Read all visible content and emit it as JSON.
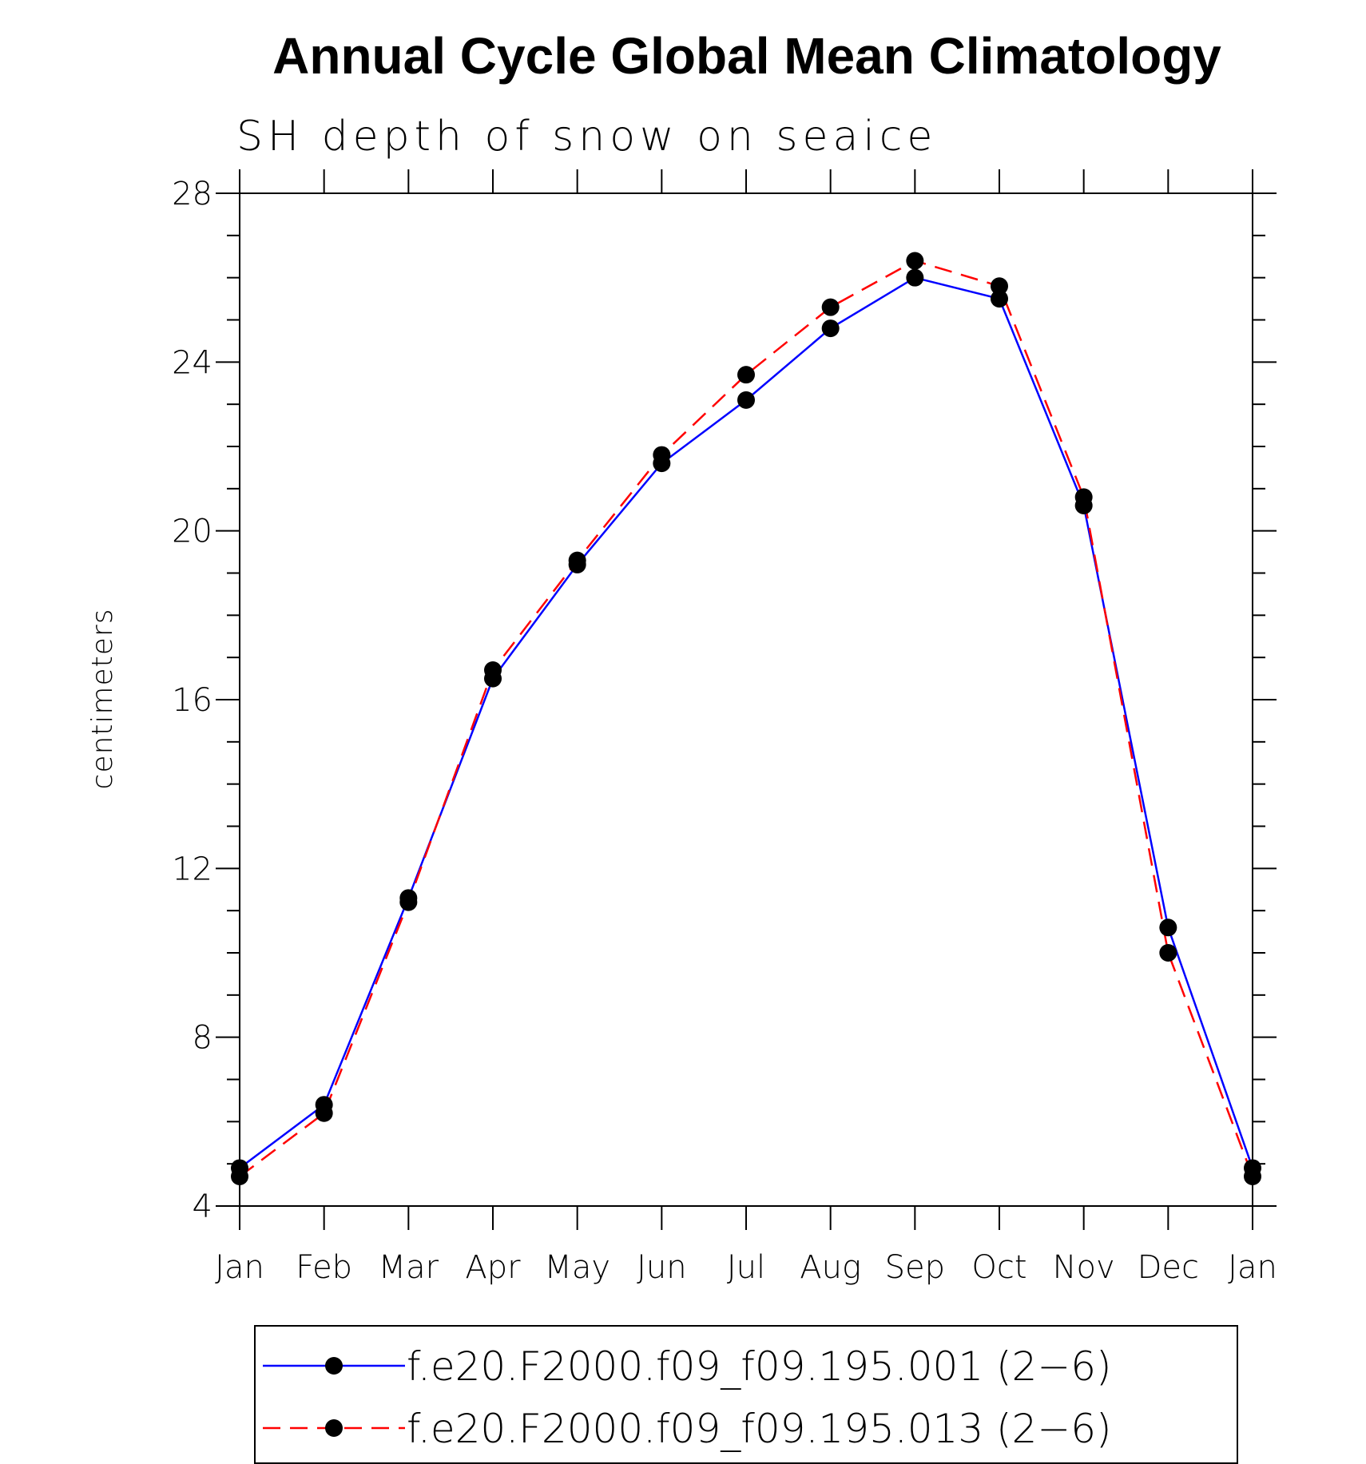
{
  "chart_data": {
    "type": "line",
    "title": "Annual Cycle Global Mean Climatology",
    "subtitle": "SH depth of snow on seaice",
    "xlabel": "",
    "ylabel": "centimeters",
    "categories": [
      "Jan",
      "Feb",
      "Mar",
      "Apr",
      "May",
      "Jun",
      "Jul",
      "Aug",
      "Sep",
      "Oct",
      "Nov",
      "Dec",
      "Jan"
    ],
    "ylim": [
      4,
      28
    ],
    "yticks": [
      "4",
      "8",
      "12",
      "16",
      "20",
      "24",
      "28"
    ],
    "legend_position": "bottom",
    "series": [
      {
        "name": "f.e20.F2000.f09_f09.195.001 (2−6)",
        "color": "#0000ff",
        "dash": "solid",
        "marker": "filled-circle",
        "values": [
          4.9,
          6.4,
          11.3,
          16.5,
          19.2,
          21.6,
          23.1,
          24.8,
          26.0,
          25.5,
          20.6,
          10.6,
          4.9
        ]
      },
      {
        "name": "f.e20.F2000.f09_f09.195.013 (2−6)",
        "color": "#ff0000",
        "dash": "dashed",
        "marker": "filled-circle",
        "values": [
          4.7,
          6.2,
          11.2,
          16.7,
          19.3,
          21.8,
          23.7,
          25.3,
          26.4,
          25.8,
          20.8,
          10.0,
          4.7
        ]
      }
    ]
  }
}
